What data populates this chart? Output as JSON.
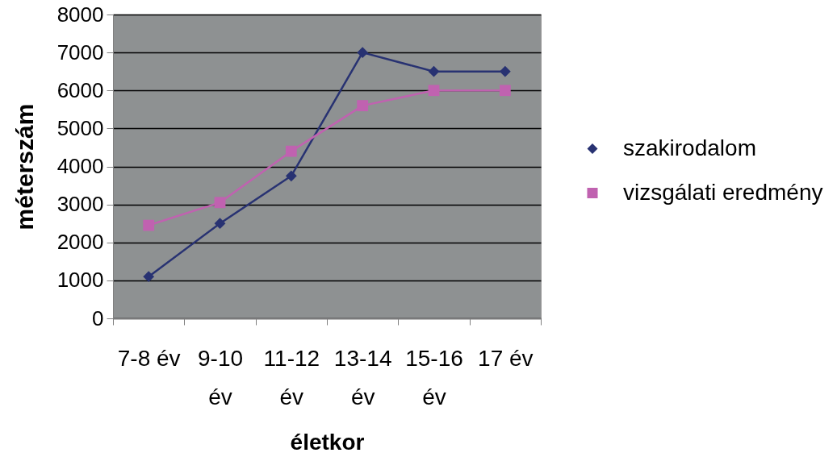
{
  "chart_data": {
    "type": "line",
    "xlabel": "életkor",
    "ylabel": "méterszám",
    "categories": [
      "7-8 év",
      "9-10 év",
      "11-12 év",
      "13-14 év",
      "15-16 év",
      "17 év"
    ],
    "series": [
      {
        "name": "szakirodalom",
        "color": "#283272",
        "marker": "diamond",
        "values": [
          1100,
          2500,
          3750,
          7000,
          6500,
          6500
        ]
      },
      {
        "name": "vizsgálati eredmény",
        "color": "#c062b0",
        "marker": "square",
        "values": [
          2450,
          3050,
          4400,
          5600,
          6000,
          6000
        ]
      }
    ],
    "ylim": [
      0,
      8000
    ],
    "yticks": [
      0,
      1000,
      2000,
      3000,
      4000,
      5000,
      6000,
      7000,
      8000
    ],
    "grid": "y",
    "legend": "right",
    "line_style": "solid"
  }
}
